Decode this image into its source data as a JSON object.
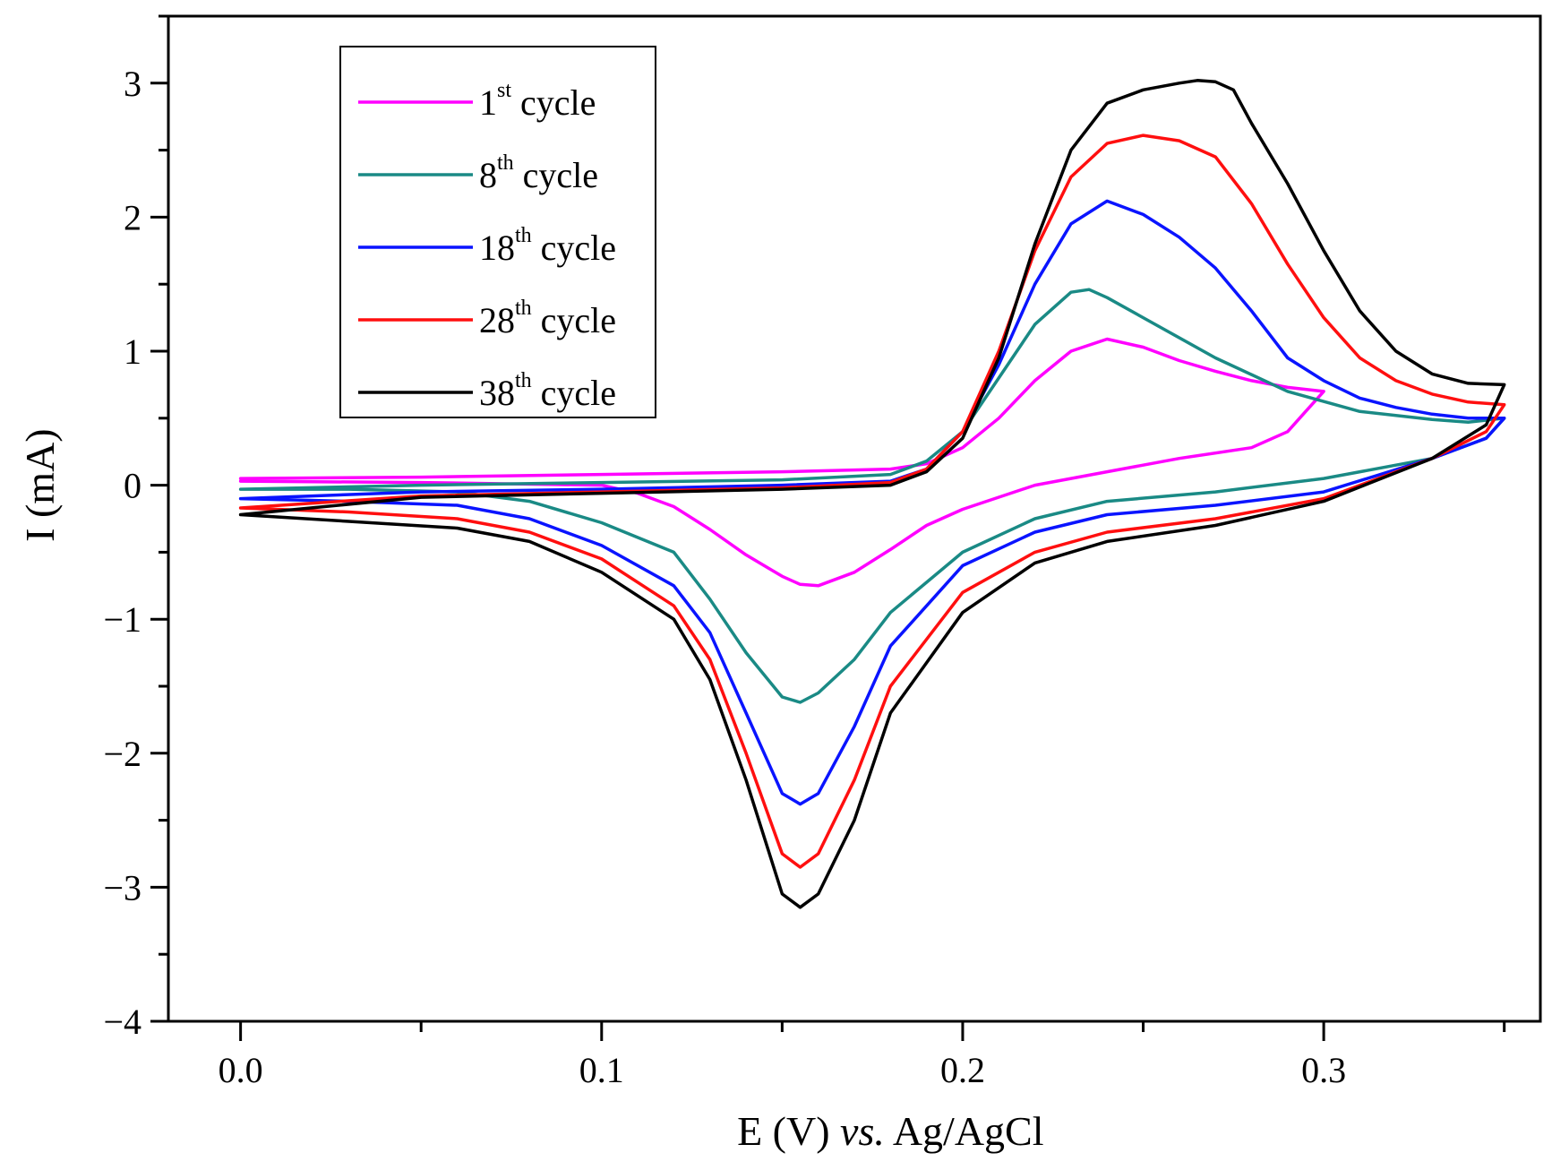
{
  "chart_data": {
    "type": "line",
    "title": "",
    "xlabel_parts": [
      "E (V) ",
      "vs.",
      " Ag/AgCl"
    ],
    "ylabel": "I (mA)",
    "xlim": [
      -0.02,
      0.36
    ],
    "ylim": [
      -4,
      3.5
    ],
    "x_ticks": [
      {
        "value": 0.0,
        "label": "0.0"
      },
      {
        "value": 0.1,
        "label": "0.1"
      },
      {
        "value": 0.2,
        "label": "0.2"
      },
      {
        "value": 0.3,
        "label": "0.3"
      }
    ],
    "y_ticks": [
      {
        "value": 3,
        "label": "3"
      },
      {
        "value": 2,
        "label": "2"
      },
      {
        "value": 1,
        "label": "1"
      },
      {
        "value": 0,
        "label": "0"
      },
      {
        "value": -1,
        "label": "−1"
      },
      {
        "value": -2,
        "label": "−2"
      },
      {
        "value": -3,
        "label": "−3"
      },
      {
        "value": -4,
        "label": "−4"
      }
    ],
    "legend_position": "top-left",
    "grid": false,
    "series": [
      {
        "name": "1",
        "sup": "st",
        "suffix": " cycle",
        "color": "#ff00ff",
        "points": [
          [
            0,
            0.05
          ],
          [
            0.05,
            0.06
          ],
          [
            0.1,
            0.08
          ],
          [
            0.15,
            0.1
          ],
          [
            0.18,
            0.12
          ],
          [
            0.19,
            0.16
          ],
          [
            0.2,
            0.28
          ],
          [
            0.21,
            0.5
          ],
          [
            0.22,
            0.78
          ],
          [
            0.23,
            1.0
          ],
          [
            0.24,
            1.09
          ],
          [
            0.25,
            1.03
          ],
          [
            0.26,
            0.93
          ],
          [
            0.27,
            0.85
          ],
          [
            0.28,
            0.78
          ],
          [
            0.29,
            0.73
          ],
          [
            0.3,
            0.7
          ],
          [
            0.295,
            0.55
          ],
          [
            0.29,
            0.4
          ],
          [
            0.28,
            0.28
          ],
          [
            0.26,
            0.2
          ],
          [
            0.24,
            0.1
          ],
          [
            0.22,
            0.0
          ],
          [
            0.2,
            -0.18
          ],
          [
            0.19,
            -0.3
          ],
          [
            0.18,
            -0.48
          ],
          [
            0.17,
            -0.65
          ],
          [
            0.16,
            -0.75
          ],
          [
            0.155,
            -0.74
          ],
          [
            0.15,
            -0.68
          ],
          [
            0.14,
            -0.52
          ],
          [
            0.13,
            -0.33
          ],
          [
            0.12,
            -0.16
          ],
          [
            0.11,
            -0.06
          ],
          [
            0.1,
            0.0
          ],
          [
            0.05,
            0.02
          ],
          [
            0,
            0.03
          ]
        ]
      },
      {
        "name": "8",
        "sup": "th",
        "suffix": " cycle",
        "color": "#1a8a85",
        "points": [
          [
            0,
            -0.03
          ],
          [
            0.05,
            0.0
          ],
          [
            0.1,
            0.02
          ],
          [
            0.15,
            0.04
          ],
          [
            0.18,
            0.08
          ],
          [
            0.19,
            0.18
          ],
          [
            0.2,
            0.4
          ],
          [
            0.21,
            0.8
          ],
          [
            0.22,
            1.2
          ],
          [
            0.23,
            1.44
          ],
          [
            0.235,
            1.46
          ],
          [
            0.24,
            1.4
          ],
          [
            0.25,
            1.25
          ],
          [
            0.27,
            0.95
          ],
          [
            0.29,
            0.7
          ],
          [
            0.31,
            0.55
          ],
          [
            0.33,
            0.49
          ],
          [
            0.34,
            0.47
          ],
          [
            0.35,
            0.5
          ],
          [
            0.345,
            0.35
          ],
          [
            0.33,
            0.2
          ],
          [
            0.3,
            0.05
          ],
          [
            0.27,
            -0.05
          ],
          [
            0.24,
            -0.12
          ],
          [
            0.22,
            -0.25
          ],
          [
            0.2,
            -0.5
          ],
          [
            0.18,
            -0.95
          ],
          [
            0.17,
            -1.3
          ],
          [
            0.16,
            -1.55
          ],
          [
            0.155,
            -1.62
          ],
          [
            0.15,
            -1.58
          ],
          [
            0.14,
            -1.25
          ],
          [
            0.13,
            -0.85
          ],
          [
            0.12,
            -0.5
          ],
          [
            0.1,
            -0.28
          ],
          [
            0.08,
            -0.12
          ],
          [
            0.06,
            -0.05
          ],
          [
            0.03,
            -0.03
          ],
          [
            0,
            -0.03
          ]
        ]
      },
      {
        "name": "18",
        "sup": "th",
        "suffix": " cycle",
        "color": "#0a14ff",
        "points": [
          [
            0,
            -0.1
          ],
          [
            0.05,
            -0.05
          ],
          [
            0.1,
            -0.03
          ],
          [
            0.15,
            0.0
          ],
          [
            0.18,
            0.03
          ],
          [
            0.19,
            0.12
          ],
          [
            0.2,
            0.4
          ],
          [
            0.21,
            0.9
          ],
          [
            0.22,
            1.5
          ],
          [
            0.23,
            1.95
          ],
          [
            0.24,
            2.12
          ],
          [
            0.25,
            2.02
          ],
          [
            0.26,
            1.85
          ],
          [
            0.27,
            1.62
          ],
          [
            0.28,
            1.3
          ],
          [
            0.29,
            0.95
          ],
          [
            0.3,
            0.78
          ],
          [
            0.31,
            0.65
          ],
          [
            0.32,
            0.58
          ],
          [
            0.33,
            0.53
          ],
          [
            0.34,
            0.5
          ],
          [
            0.35,
            0.5
          ],
          [
            0.345,
            0.35
          ],
          [
            0.33,
            0.2
          ],
          [
            0.3,
            -0.05
          ],
          [
            0.27,
            -0.15
          ],
          [
            0.24,
            -0.22
          ],
          [
            0.22,
            -0.35
          ],
          [
            0.2,
            -0.6
          ],
          [
            0.18,
            -1.2
          ],
          [
            0.17,
            -1.8
          ],
          [
            0.16,
            -2.3
          ],
          [
            0.155,
            -2.38
          ],
          [
            0.15,
            -2.3
          ],
          [
            0.14,
            -1.7
          ],
          [
            0.13,
            -1.1
          ],
          [
            0.12,
            -0.75
          ],
          [
            0.1,
            -0.45
          ],
          [
            0.08,
            -0.25
          ],
          [
            0.06,
            -0.15
          ],
          [
            0.03,
            -0.12
          ],
          [
            0,
            -0.1
          ]
        ]
      },
      {
        "name": "28",
        "sup": "th",
        "suffix": " cycle",
        "color": "#ff0f0f",
        "points": [
          [
            0,
            -0.17
          ],
          [
            0.05,
            -0.08
          ],
          [
            0.1,
            -0.05
          ],
          [
            0.15,
            -0.02
          ],
          [
            0.18,
            0.02
          ],
          [
            0.19,
            0.12
          ],
          [
            0.2,
            0.4
          ],
          [
            0.21,
            1.0
          ],
          [
            0.22,
            1.75
          ],
          [
            0.23,
            2.3
          ],
          [
            0.24,
            2.55
          ],
          [
            0.25,
            2.61
          ],
          [
            0.26,
            2.57
          ],
          [
            0.27,
            2.45
          ],
          [
            0.28,
            2.1
          ],
          [
            0.29,
            1.65
          ],
          [
            0.3,
            1.25
          ],
          [
            0.31,
            0.95
          ],
          [
            0.32,
            0.78
          ],
          [
            0.33,
            0.68
          ],
          [
            0.34,
            0.62
          ],
          [
            0.35,
            0.6
          ],
          [
            0.345,
            0.4
          ],
          [
            0.33,
            0.2
          ],
          [
            0.3,
            -0.1
          ],
          [
            0.27,
            -0.25
          ],
          [
            0.24,
            -0.35
          ],
          [
            0.22,
            -0.5
          ],
          [
            0.2,
            -0.8
          ],
          [
            0.18,
            -1.5
          ],
          [
            0.17,
            -2.2
          ],
          [
            0.16,
            -2.75
          ],
          [
            0.155,
            -2.85
          ],
          [
            0.15,
            -2.75
          ],
          [
            0.14,
            -2.0
          ],
          [
            0.13,
            -1.3
          ],
          [
            0.12,
            -0.9
          ],
          [
            0.1,
            -0.55
          ],
          [
            0.08,
            -0.35
          ],
          [
            0.06,
            -0.25
          ],
          [
            0.03,
            -0.2
          ],
          [
            0,
            -0.17
          ]
        ]
      },
      {
        "name": "38",
        "sup": "th",
        "suffix": " cycle",
        "color": "#000000",
        "points": [
          [
            0,
            -0.22
          ],
          [
            0.05,
            -0.09
          ],
          [
            0.1,
            -0.06
          ],
          [
            0.15,
            -0.03
          ],
          [
            0.18,
            0.0
          ],
          [
            0.19,
            0.1
          ],
          [
            0.2,
            0.35
          ],
          [
            0.21,
            0.95
          ],
          [
            0.22,
            1.8
          ],
          [
            0.23,
            2.5
          ],
          [
            0.24,
            2.85
          ],
          [
            0.25,
            2.95
          ],
          [
            0.26,
            3.0
          ],
          [
            0.265,
            3.02
          ],
          [
            0.27,
            3.01
          ],
          [
            0.275,
            2.95
          ],
          [
            0.28,
            2.7
          ],
          [
            0.29,
            2.25
          ],
          [
            0.3,
            1.75
          ],
          [
            0.31,
            1.3
          ],
          [
            0.32,
            1.0
          ],
          [
            0.33,
            0.83
          ],
          [
            0.34,
            0.76
          ],
          [
            0.35,
            0.75
          ],
          [
            0.345,
            0.45
          ],
          [
            0.33,
            0.2
          ],
          [
            0.3,
            -0.12
          ],
          [
            0.27,
            -0.3
          ],
          [
            0.24,
            -0.42
          ],
          [
            0.22,
            -0.58
          ],
          [
            0.2,
            -0.95
          ],
          [
            0.18,
            -1.7
          ],
          [
            0.17,
            -2.5
          ],
          [
            0.16,
            -3.05
          ],
          [
            0.155,
            -3.15
          ],
          [
            0.15,
            -3.05
          ],
          [
            0.14,
            -2.2
          ],
          [
            0.13,
            -1.45
          ],
          [
            0.12,
            -1.0
          ],
          [
            0.1,
            -0.65
          ],
          [
            0.08,
            -0.42
          ],
          [
            0.06,
            -0.32
          ],
          [
            0.03,
            -0.27
          ],
          [
            0,
            -0.22
          ]
        ]
      }
    ]
  }
}
